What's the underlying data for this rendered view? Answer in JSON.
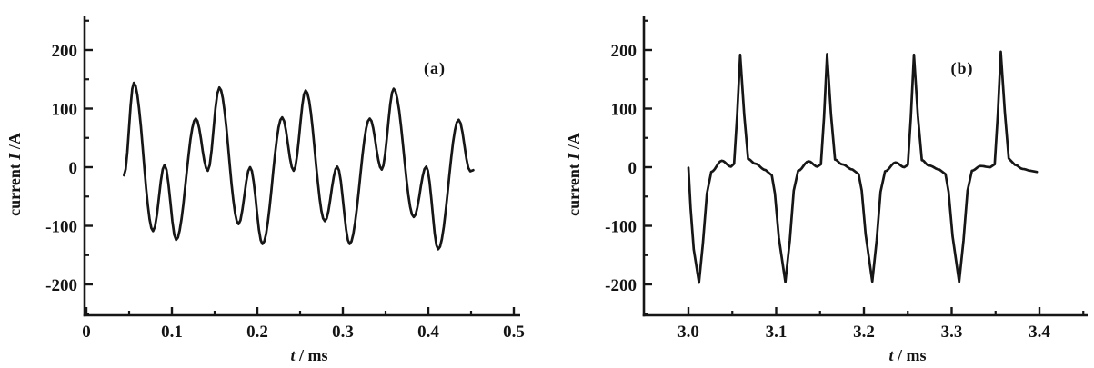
{
  "figure": {
    "background": "#ffffff",
    "ink_color": "#161616",
    "description": "Two-panel oscillogram of current waveforms versus time"
  },
  "chart_data": [
    {
      "id": "a",
      "type": "line",
      "panel_label": "(a)",
      "xlabel_var": "t",
      "xlabel_suffix": " / ms",
      "ylabel_prefix": "current ",
      "ylabel_var": "I",
      "ylabel_suffix": " /A",
      "xlim": [
        0,
        0.5
      ],
      "ylim": [
        -250,
        250
      ],
      "grid": false,
      "legend": "none",
      "x_major_ticks": [
        0,
        0.1,
        0.2,
        0.3,
        0.4,
        0.5
      ],
      "x_tick_labels": [
        "0",
        "0.1",
        "0.2",
        "0.3",
        "0.4",
        "0.5"
      ],
      "x_minor_ticks": [
        0.05,
        0.15,
        0.25,
        0.35,
        0.45
      ],
      "y_major_ticks": [
        200,
        100,
        0,
        -100,
        -200
      ],
      "y_tick_labels": [
        "200",
        "100",
        "0",
        "-100",
        "-200"
      ],
      "y_minor_ticks": [
        250,
        150,
        50,
        -50,
        -150,
        -250
      ],
      "line_color": "#161616",
      "series": [
        {
          "name": "current-waveform-a",
          "points": [
            [
              0.044,
              -14
            ],
            [
              0.0555,
              144
            ],
            [
              0.078,
              -109
            ],
            [
              0.0915,
              4
            ],
            [
              0.105,
              -124
            ],
            [
              0.128,
              83
            ],
            [
              0.142,
              -6
            ],
            [
              0.1555,
              136
            ],
            [
              0.178,
              -97
            ],
            [
              0.1915,
              0
            ],
            [
              0.206,
              -131
            ],
            [
              0.229,
              85
            ],
            [
              0.2425,
              -6
            ],
            [
              0.2565,
              131
            ],
            [
              0.279,
              -92
            ],
            [
              0.2935,
              1
            ],
            [
              0.308,
              -131
            ],
            [
              0.3315,
              83
            ],
            [
              0.3455,
              -4
            ],
            [
              0.3595,
              134
            ],
            [
              0.383,
              -85
            ],
            [
              0.3975,
              1
            ],
            [
              0.4115,
              -140
            ],
            [
              0.4355,
              81
            ],
            [
              0.449,
              -7
            ],
            [
              0.4525,
              -5
            ]
          ]
        }
      ]
    },
    {
      "id": "b",
      "type": "line",
      "panel_label": "(b)",
      "xlabel_var": "t",
      "xlabel_suffix": " / ms",
      "ylabel_prefix": "current ",
      "ylabel_var": "I",
      "ylabel_suffix": " /A",
      "xlim": [
        2.95,
        3.45
      ],
      "ylim": [
        -250,
        250
      ],
      "grid": false,
      "legend": "none",
      "x_major_ticks": [
        3.0,
        3.1,
        3.2,
        3.3,
        3.4
      ],
      "x_tick_labels": [
        "3.0",
        "3.1",
        "3.2",
        "3.3",
        "3.4"
      ],
      "x_minor_ticks": [
        3.05,
        3.15,
        3.25,
        3.35,
        3.45
      ],
      "y_major_ticks": [
        200,
        100,
        0,
        -100,
        -200
      ],
      "y_tick_labels": [
        "200",
        "100",
        "0",
        "-100",
        "-200"
      ],
      "y_minor_ticks": [
        250,
        150,
        50,
        -50,
        -150,
        -250
      ],
      "line_color": "#161616",
      "series": [
        {
          "name": "current-waveform-b",
          "points": [
            [
              3.0,
              -1
            ],
            [
              3.0025,
              -70
            ],
            [
              3.006,
              -140
            ],
            [
              3.012,
              -197
            ],
            [
              3.0165,
              -130
            ],
            [
              3.021,
              -45
            ],
            [
              3.026,
              -8
            ],
            [
              3.038,
              11
            ],
            [
              3.0485,
              1
            ],
            [
              3.052,
              6
            ],
            [
              3.0555,
              90
            ],
            [
              3.059,
              192
            ],
            [
              3.0635,
              90
            ],
            [
              3.068,
              14
            ],
            [
              3.076,
              6
            ],
            [
              3.088,
              -5
            ],
            [
              3.095,
              -14
            ],
            [
              3.0985,
              -45
            ],
            [
              3.103,
              -120
            ],
            [
              3.1105,
              -196
            ],
            [
              3.1155,
              -125
            ],
            [
              3.12,
              -40
            ],
            [
              3.125,
              -6
            ],
            [
              3.137,
              10
            ],
            [
              3.147,
              1
            ],
            [
              3.151,
              5
            ],
            [
              3.1545,
              85
            ],
            [
              3.158,
              193
            ],
            [
              3.1625,
              90
            ],
            [
              3.167,
              13
            ],
            [
              3.175,
              5
            ],
            [
              3.187,
              -4
            ],
            [
              3.194,
              -12
            ],
            [
              3.1975,
              -40
            ],
            [
              3.202,
              -115
            ],
            [
              3.2095,
              -195
            ],
            [
              3.2145,
              -125
            ],
            [
              3.219,
              -42
            ],
            [
              3.224,
              -7
            ],
            [
              3.236,
              8
            ],
            [
              3.246,
              0
            ],
            [
              3.25,
              4
            ],
            [
              3.2535,
              85
            ],
            [
              3.257,
              192
            ],
            [
              3.2615,
              88
            ],
            [
              3.266,
              12
            ],
            [
              3.274,
              3
            ],
            [
              3.286,
              -4
            ],
            [
              3.293,
              -12
            ],
            [
              3.2965,
              -42
            ],
            [
              3.301,
              -118
            ],
            [
              3.3085,
              -196
            ],
            [
              3.3135,
              -125
            ],
            [
              3.318,
              -40
            ],
            [
              3.323,
              -6
            ],
            [
              3.333,
              2
            ],
            [
              3.344,
              0
            ],
            [
              3.349,
              5
            ],
            [
              3.3525,
              90
            ],
            [
              3.356,
              197
            ],
            [
              3.3605,
              95
            ],
            [
              3.365,
              15
            ],
            [
              3.372,
              4
            ],
            [
              3.381,
              -3
            ],
            [
              3.39,
              -6
            ],
            [
              3.397,
              -8
            ]
          ]
        }
      ]
    }
  ]
}
